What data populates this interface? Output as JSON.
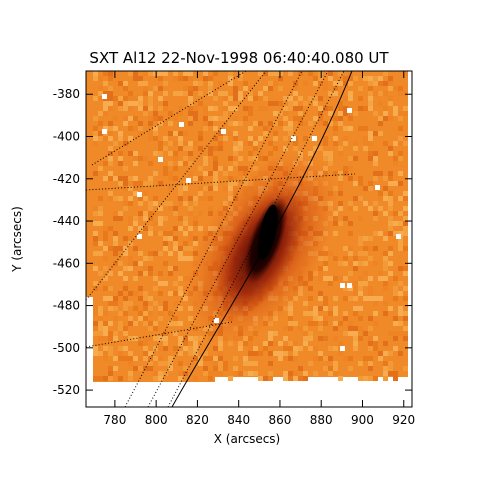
{
  "figure": {
    "title": "SXT Al12 22-Nov-1998 06:40:40.080 UT",
    "xlabel": "X (arcsecs)",
    "ylabel": "Y (arcsecs)",
    "x_ticks": [
      "780",
      "800",
      "820",
      "840",
      "860",
      "880",
      "900",
      "920"
    ],
    "y_ticks": [
      "-380",
      "-400",
      "-420",
      "-440",
      "-460",
      "-480",
      "-500",
      "-520"
    ],
    "x_range": [
      766,
      924
    ],
    "y_range": [
      -528,
      -369
    ],
    "background_color": "#f08a28",
    "core_color": "#000000",
    "grid_style": "dotted"
  }
}
